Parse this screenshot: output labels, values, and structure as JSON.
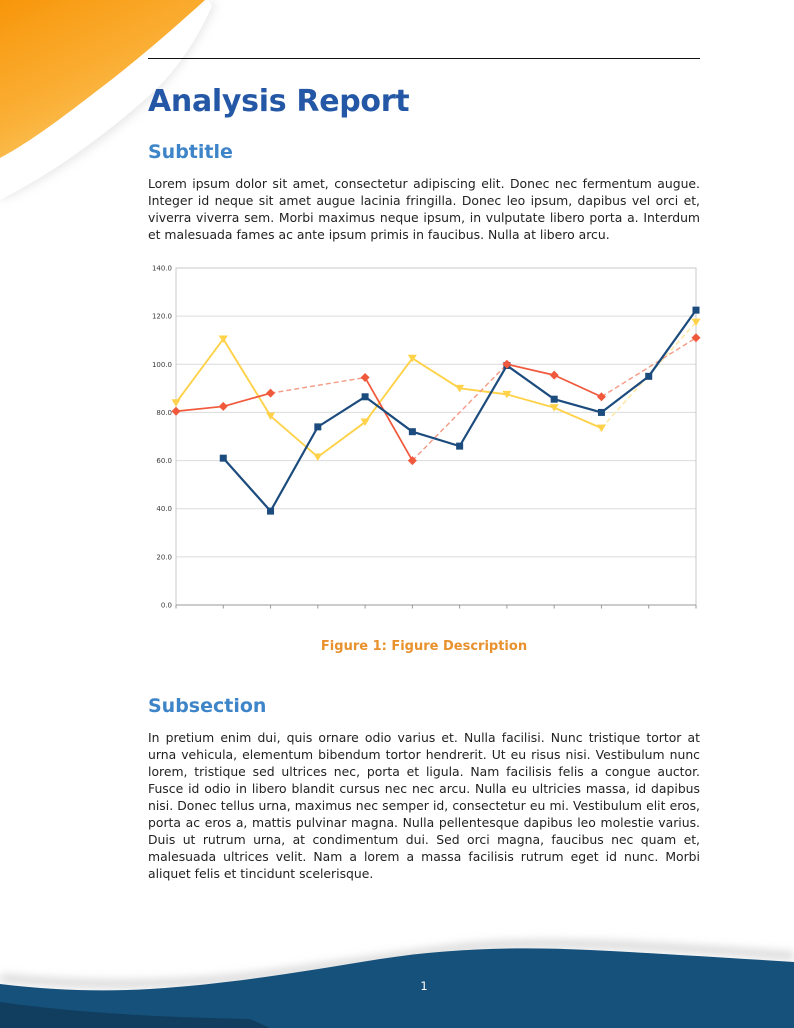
{
  "title": "Analysis Report",
  "sections": [
    {
      "heading": "Subtitle",
      "body": "Lorem ipsum dolor sit amet, consectetur adipiscing elit. Donec nec fermentum augue. Integer id neque sit amet augue lacinia fringilla. Donec leo ipsum, dapibus vel orci et, viverra viverra sem. Morbi maximus neque ipsum, in vulputate libero porta a. Interdum et malesuada fames ac ante ipsum primis in faucibus. Nulla at libero arcu."
    },
    {
      "heading": "Subsection",
      "body": "In pretium enim dui, quis ornare odio varius et. Nulla facilisi. Nunc tristique tortor at urna vehicula, elementum bibendum tortor hendrerit. Ut eu risus nisi. Vestibulum nunc lorem, tristique sed ultrices nec, porta et ligula. Nam facilisis felis a congue auctor. Fusce id odio in libero blandit cursus nec nec arcu. Nulla eu ultricies massa, id dapibus nisi. Donec tellus urna, maximus nec semper id, consectetur eu mi. Vestibulum elit eros, porta ac eros a, mattis pulvinar magna. Nulla pellentesque dapibus leo molestie varius. Duis ut rutrum urna, at condimentum dui. Sed orci magna, faucibus nec quam et, malesuada ultrices velit. Nam a lorem a massa facilisis rutrum eget id nunc. Morbi aliquet felis et tincidunt scelerisque."
    }
  ],
  "figure": {
    "caption": "Figure 1: Figure Description"
  },
  "page": {
    "number": "1"
  },
  "chart_data": {
    "type": "line",
    "title": "",
    "xlabel": "",
    "ylabel": "",
    "x_tick_count": 12,
    "x_labels": [],
    "ylim": [
      0,
      140
    ],
    "yticks": [
      0,
      20,
      40,
      60,
      80,
      100,
      120,
      140
    ],
    "ytick_labels": [
      "0.0",
      "20.0",
      "40.0",
      "60.0",
      "80.0",
      "100.0",
      "120.0",
      "140.0"
    ],
    "grid": "horizontal",
    "legend": "none",
    "missing_segment_style": "dashed",
    "series": [
      {
        "name": "blue-squares",
        "marker": "square",
        "color": "#1C4B7D",
        "dash_color": "#7FA3C4",
        "line_width": 2.2,
        "values": [
          null,
          61,
          39,
          74,
          86.5,
          72,
          66,
          99.5,
          85.5,
          80,
          95,
          122.5
        ]
      },
      {
        "name": "yellow-triangles",
        "marker": "triangle-down",
        "color": "#FFD24A",
        "dash_color": "#FFE9A8",
        "line_width": 1.9,
        "values": [
          84,
          110.5,
          78.5,
          61.5,
          76,
          102.5,
          90,
          87.5,
          82,
          73.5,
          null,
          117.5
        ]
      },
      {
        "name": "red-diamonds",
        "marker": "diamond",
        "color": "#F0593B",
        "dash_color": "#F49C86",
        "line_width": 1.7,
        "values": [
          80.5,
          82.5,
          88,
          null,
          94.5,
          60,
          null,
          100,
          95.5,
          86.5,
          null,
          111
        ]
      }
    ]
  },
  "colors": {
    "title": "#2458A6",
    "heading": "#3D85C8",
    "caption": "#E8912D",
    "body_text": "#222222",
    "footer_wave": "#15517B",
    "footer_wave_dark": "#113E5E",
    "decoration_orange": "#F89D12",
    "rule": "#111111"
  }
}
